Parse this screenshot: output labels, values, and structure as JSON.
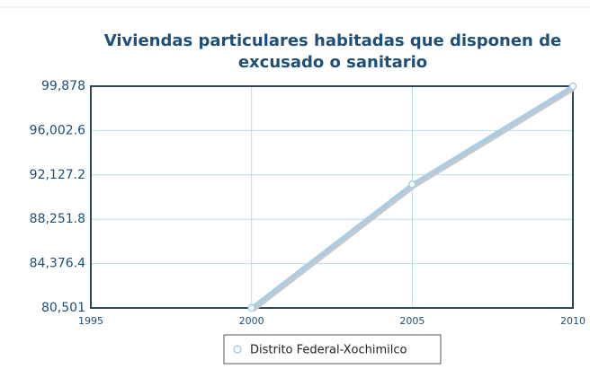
{
  "chart_data": {
    "type": "line",
    "title": "Viviendas particulares habitadas que disponen de",
    "title_line2": "excusado o sanitario",
    "x": [
      2000,
      2005,
      2010
    ],
    "series": [
      {
        "name": "Distrito Federal-Xochimilco",
        "color": "#a9cde6",
        "values": [
          80501,
          91300,
          99878
        ]
      }
    ],
    "xlim": [
      1995,
      2010
    ],
    "xticks": [
      1995,
      2000,
      2005,
      2010
    ],
    "ylim": [
      80501,
      99878
    ],
    "yticks": [
      {
        "value": 80501,
        "label": "80,501"
      },
      {
        "value": 84376.4,
        "label": "84,376.4"
      },
      {
        "value": 88251.8,
        "label": "88,251.8"
      },
      {
        "value": 92127.2,
        "label": "92,127.2"
      },
      {
        "value": 96002.6,
        "label": "96,002.6"
      },
      {
        "value": 99878,
        "label": "99,878"
      }
    ],
    "grid": true
  }
}
